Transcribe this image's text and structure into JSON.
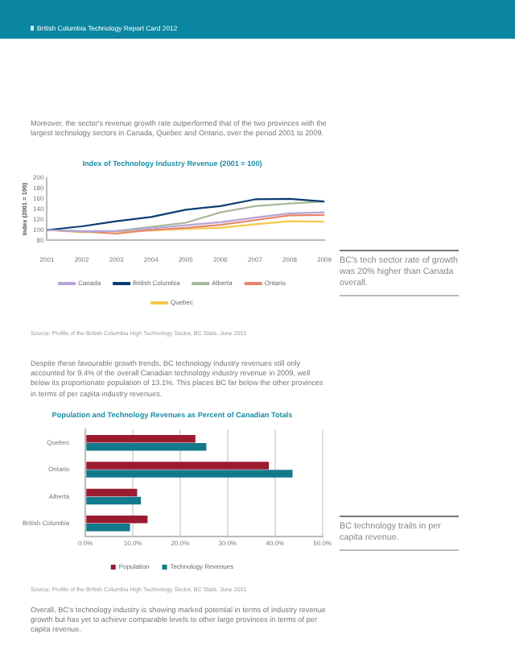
{
  "chart_data": [
    {
      "type": "line",
      "title": "Index of Technology Industry Revenue (2001 = 100)",
      "ylabel": "Index (2001 = 100)",
      "categories": [
        "2001",
        "2002",
        "2003",
        "2004",
        "2005",
        "2006",
        "2007",
        "2008",
        "2009"
      ],
      "ylim": [
        80,
        200
      ],
      "yticks": [
        80,
        100,
        120,
        140,
        160,
        180,
        200
      ],
      "grid": false,
      "legend": "bottom",
      "marker": "none",
      "line_style": "solid",
      "series": [
        {
          "name": "Canada",
          "color": "#b7a4d6",
          "values": [
            100,
            98,
            98,
            103,
            109,
            115,
            124,
            132,
            134
          ]
        },
        {
          "name": "British Columbia",
          "color": "#0d3c73",
          "values": [
            100,
            107,
            117,
            125,
            139,
            146,
            159,
            160,
            155
          ]
        },
        {
          "name": "Alberta",
          "color": "#a9b89a",
          "values": [
            100,
            97,
            98,
            106,
            114,
            134,
            146,
            151,
            155
          ]
        },
        {
          "name": "Ontario",
          "color": "#e8866b",
          "values": [
            100,
            97,
            93,
            100,
            104,
            110,
            119,
            128,
            129
          ]
        },
        {
          "name": "Quebec",
          "color": "#f5c84b",
          "values": [
            100,
            96,
            97,
            99,
            102,
            104,
            111,
            117,
            116
          ]
        }
      ],
      "annotations": [
        "British Columbia Technology Report Card 2012",
        "Moreover, the sector's revenue growth rate outperformed that of the two provinces with the largest technology sectors in Canada, Quebec and Ontario, over the period 2001 to 2009.",
        "BC's tech sector rate of growth was 20% higher than Canada overall.",
        "Source: Profile of the British Columbia High Technology Sector, BC Stats, June 2011"
      ]
    },
    {
      "type": "bar",
      "orientation": "horizontal",
      "title": "Population and Technology Revenues as Percent of Canadian Totals",
      "categories": [
        "Quebec",
        "Ontario",
        "Alberta",
        "British Columbia"
      ],
      "xlim": [
        0,
        50
      ],
      "xticks": [
        {
          "value": 0,
          "label": "0.0%"
        },
        {
          "value": 10,
          "label": "10.0%"
        },
        {
          "value": 20,
          "label": "20.0%"
        },
        {
          "value": 30,
          "label": "30.0%"
        },
        {
          "value": 40,
          "label": "40.0%"
        },
        {
          "value": 50,
          "label": "50.0%"
        }
      ],
      "grid": "x",
      "legend": "bottom",
      "series": [
        {
          "name": "Population",
          "color": "#9b1c31",
          "values": [
            23.2,
            38.7,
            10.9,
            13.1
          ]
        },
        {
          "name": "Technology Revenues",
          "color": "#137a8c",
          "values": [
            25.5,
            43.7,
            11.7,
            9.4
          ]
        }
      ],
      "annotations": [
        "Despite these favourable growth trends, BC technology industry revenues still only accounted for 9.4% of the overall Canadian technology industry revenue in 2009, well below its proportionate population of 13.1%. This places BC far below the other provinces in terms of per capita industry revenues.",
        "BC technology trails in per capita revenue.",
        "Source: Profile of the British Columbia High Technology Sector, BC Stats, June 2011",
        "Overall, BC's technology industry is showing marked potential in terms of industry revenue growth but has yet to achieve comparable levels to other large provinces in terms of per capita revenue."
      ]
    }
  ]
}
